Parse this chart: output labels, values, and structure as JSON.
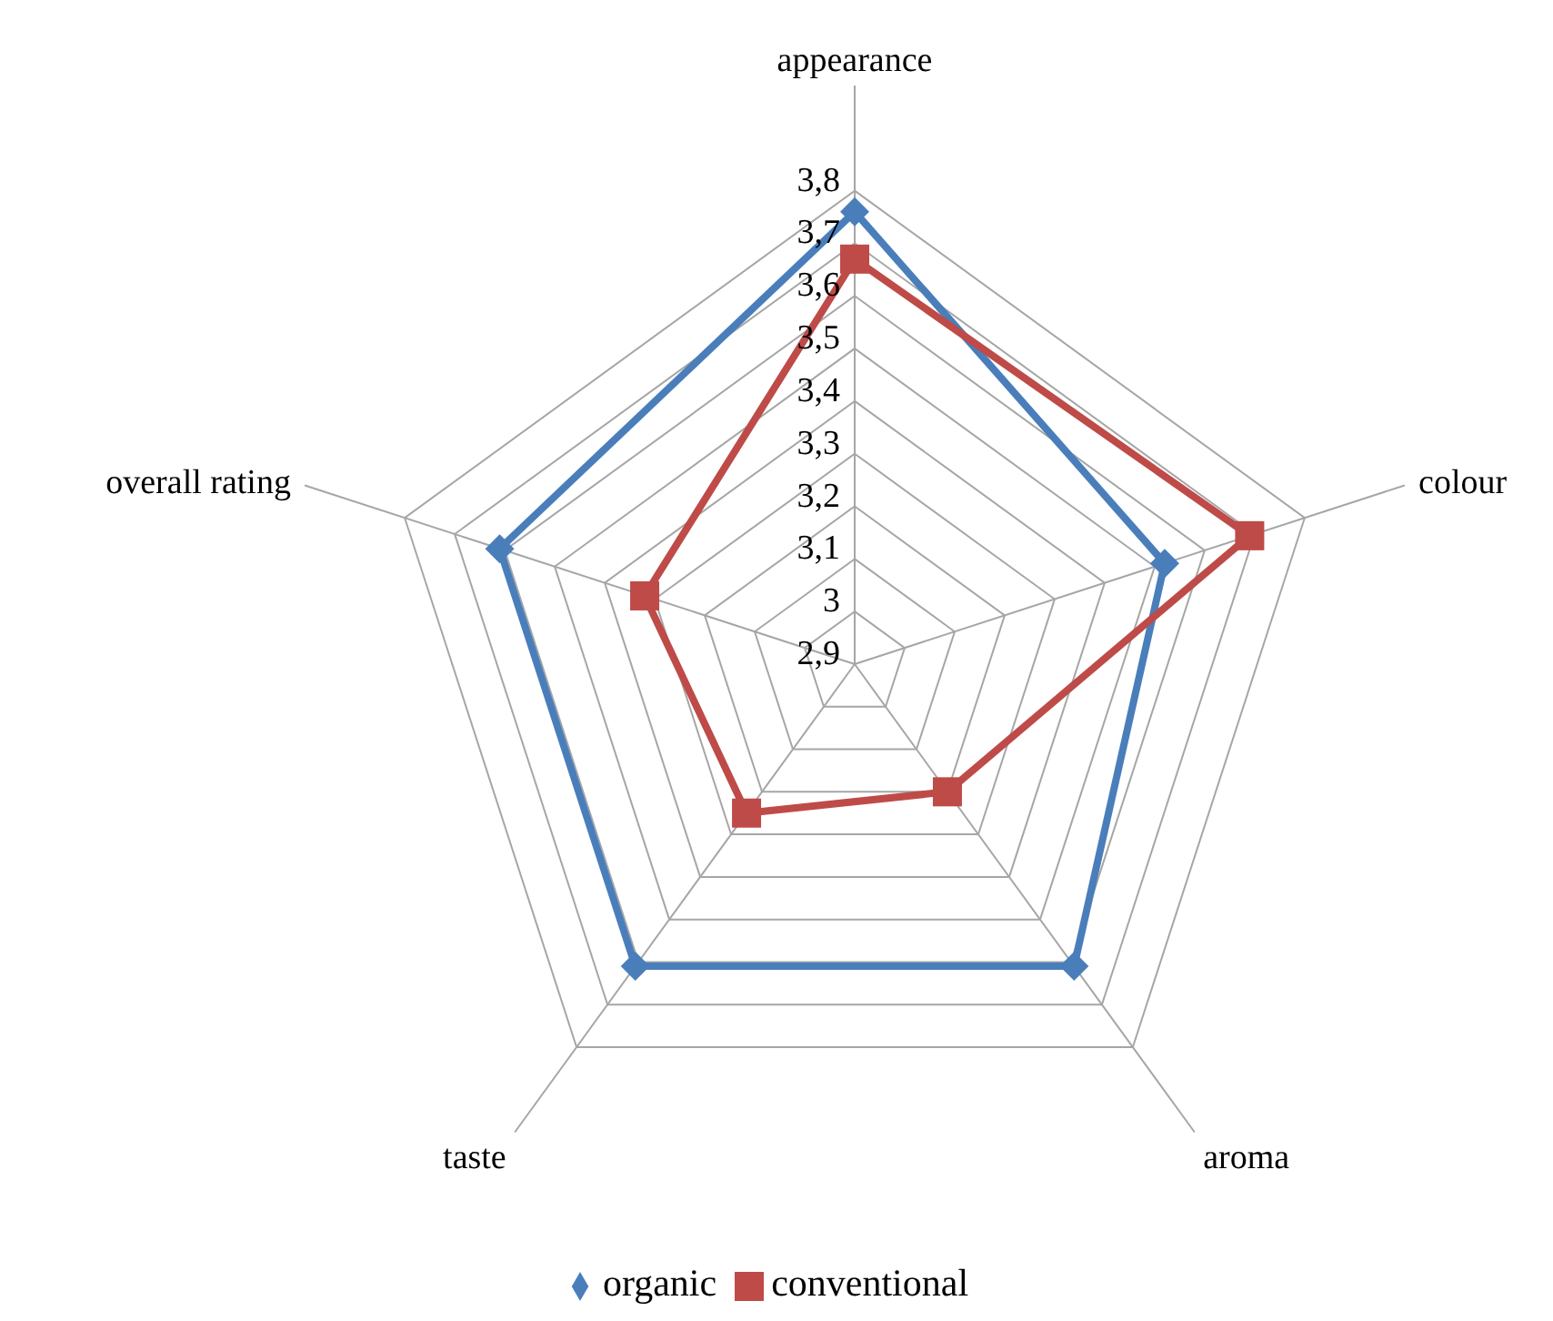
{
  "chart_data": {
    "type": "radar",
    "categories": [
      "appearance",
      "colour",
      "aroma",
      "taste",
      "overall rating"
    ],
    "series": [
      {
        "name": "organic",
        "color": "#4a7ebb",
        "marker": "diamond",
        "values": [
          3.76,
          3.52,
          3.61,
          3.61,
          3.61
        ]
      },
      {
        "name": "conventional",
        "color": "#be4b48",
        "marker": "square",
        "values": [
          3.67,
          3.69,
          3.2,
          3.25,
          3.32
        ]
      }
    ],
    "ylim": [
      2.9,
      3.8
    ],
    "yticks": [
      {
        "value": 2.9,
        "label": "2,9"
      },
      3,
      {
        "value": 3.1,
        "label": "3,1"
      },
      {
        "value": 3.2,
        "label": "3,2"
      },
      {
        "value": 3.3,
        "label": "3,3"
      },
      {
        "value": 3.4,
        "label": "3,4"
      },
      {
        "value": 3.5,
        "label": "3,5"
      },
      {
        "value": 3.6,
        "label": "3,6"
      },
      {
        "value": 3.7,
        "label": "3,7"
      },
      {
        "value": 3.8,
        "label": "3,8"
      }
    ],
    "grid": true,
    "legend": "bottom"
  }
}
